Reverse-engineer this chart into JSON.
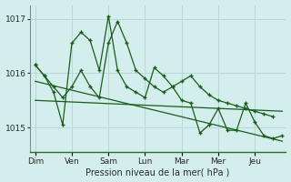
{
  "background_color": "#d4eeee",
  "grid_color": "#b8d8d8",
  "line_color": "#1a5c1a",
  "xlabel": "Pression niveau de la mer( hPa )",
  "yticks": [
    1015,
    1016,
    1017
  ],
  "ylim": [
    1014.55,
    1017.25
  ],
  "day_labels": [
    "Dim",
    "Ven",
    "Sam",
    "Lun",
    "Mar",
    "Mer",
    "Jeu"
  ],
  "day_tick_x": [
    0,
    1,
    2,
    3,
    4,
    5,
    6
  ],
  "xlim": [
    -0.15,
    6.85
  ],
  "series1_x": [
    0.0,
    0.25,
    0.5,
    0.75,
    1.0,
    1.25,
    1.5,
    1.75,
    2.0,
    2.25,
    2.5,
    2.75,
    3.0,
    3.25,
    3.5,
    3.75,
    4.0,
    4.25,
    4.5,
    4.75,
    5.0,
    5.25,
    5.5,
    5.75,
    6.0,
    6.25,
    6.5
  ],
  "series1_y": [
    1016.15,
    1015.95,
    1015.75,
    1015.55,
    1015.75,
    1016.05,
    1015.75,
    1015.55,
    1016.55,
    1016.95,
    1016.55,
    1016.05,
    1015.9,
    1015.75,
    1015.65,
    1015.75,
    1015.85,
    1015.95,
    1015.75,
    1015.6,
    1015.5,
    1015.45,
    1015.4,
    1015.35,
    1015.3,
    1015.25,
    1015.2
  ],
  "series2_x": [
    0.0,
    0.25,
    0.5,
    0.75,
    1.0,
    1.25,
    1.5,
    1.75,
    2.0,
    2.25,
    2.5,
    2.75,
    3.0,
    3.25,
    3.5,
    3.75,
    4.0,
    4.25,
    4.5,
    4.75,
    5.0,
    5.25,
    5.5,
    5.75,
    6.0,
    6.25,
    6.5,
    6.75
  ],
  "series2_y": [
    1016.15,
    1015.95,
    1015.65,
    1015.05,
    1016.55,
    1016.75,
    1016.6,
    1016.05,
    1017.05,
    1016.05,
    1015.75,
    1015.65,
    1015.55,
    1016.1,
    1015.95,
    1015.75,
    1015.5,
    1015.45,
    1014.9,
    1015.05,
    1015.35,
    1014.95,
    1014.95,
    1015.45,
    1015.1,
    1014.85,
    1014.8,
    1014.85
  ],
  "trend1_x": [
    0,
    6.75
  ],
  "trend1_y": [
    1015.5,
    1015.3
  ],
  "trend2_x": [
    0,
    6.75
  ],
  "trend2_y": [
    1015.85,
    1014.75
  ]
}
